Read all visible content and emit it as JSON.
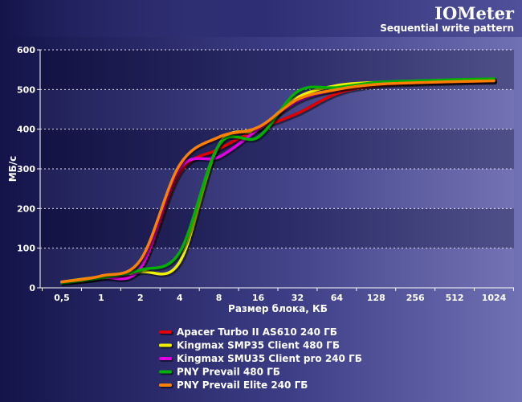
{
  "chart_data": {
    "type": "line",
    "title": "IOMeter",
    "subtitle": "Sequential write pattern",
    "xlabel": "Размер блока, КБ",
    "ylabel": "МБ/с",
    "x_scale": "log2",
    "categories": [
      "0,5",
      "1",
      "2",
      "4",
      "8",
      "16",
      "32",
      "64",
      "128",
      "256",
      "512",
      "1024"
    ],
    "x": [
      0.5,
      1,
      2,
      4,
      8,
      16,
      32,
      64,
      128,
      256,
      512,
      1024
    ],
    "ylim": [
      0,
      600
    ],
    "yticks": [
      0,
      100,
      200,
      300,
      400,
      500,
      600
    ],
    "grid": true,
    "legend_position": "bottom",
    "series": [
      {
        "name": "Apacer Turbo II AS610 240 ГБ",
        "color": "#e00000",
        "values": [
          15,
          25,
          50,
          290,
          350,
          400,
          440,
          490,
          510,
          515,
          518,
          520
        ]
      },
      {
        "name": "Kingmax SMP35 Client 480 ГБ",
        "color": "#f0f000",
        "values": [
          15,
          28,
          40,
          65,
          360,
          400,
          480,
          510,
          518,
          520,
          522,
          523
        ]
      },
      {
        "name": "Kingmax SMU35 Client pro 240 ГБ",
        "color": "#e000e0",
        "values": [
          15,
          25,
          50,
          300,
          330,
          400,
          470,
          500,
          515,
          518,
          520,
          522
        ]
      },
      {
        "name": "PNY Prevail 480 ГБ",
        "color": "#00b000",
        "values": [
          12,
          25,
          45,
          90,
          360,
          380,
          495,
          505,
          518,
          522,
          525,
          527
        ]
      },
      {
        "name": "PNY Prevail Elite 240 ГБ",
        "color": "#ff8000",
        "values": [
          15,
          30,
          70,
          310,
          380,
          405,
          475,
          500,
          513,
          517,
          520,
          522
        ]
      }
    ]
  }
}
